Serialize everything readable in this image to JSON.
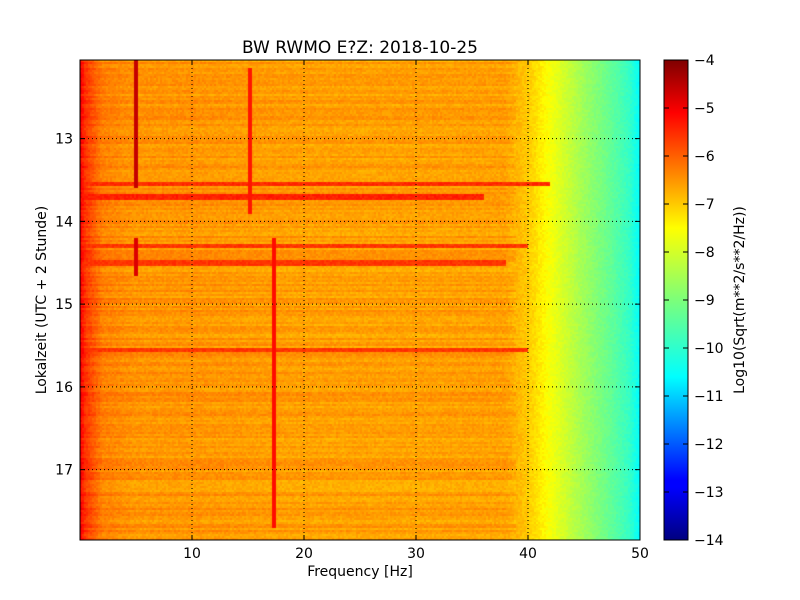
{
  "chart_data": {
    "type": "heatmap",
    "title": "BW RWMO E?Z: 2018-10-25",
    "xlabel": "Frequency [Hz]",
    "ylabel": "Lokalzeit (UTC + 2 Stunde)",
    "xlim": [
      0,
      50
    ],
    "ylim": [
      12.05,
      17.85
    ],
    "y_inverted": true,
    "x_ticks": [
      10,
      20,
      30,
      40,
      50
    ],
    "x_tick_labels": [
      "10",
      "20",
      "30",
      "40",
      "50"
    ],
    "y_ticks": [
      13,
      14,
      15,
      16,
      17
    ],
    "y_tick_labels": [
      "13",
      "14",
      "15",
      "16",
      "17"
    ],
    "grid": true,
    "colormap": "jet",
    "colorbar": {
      "label": "Log10(Sqrt(m**2/s**2/Hz))",
      "range": [
        -14,
        -4
      ],
      "ticks": [
        -4,
        -5,
        -6,
        -7,
        -8,
        -9,
        -10,
        -11,
        -12,
        -13,
        -14
      ],
      "tick_labels": [
        "−4",
        "−5",
        "−6",
        "−7",
        "−8",
        "−9",
        "−10",
        "−11",
        "−12",
        "−13",
        "−14"
      ]
    },
    "spectral_profile": {
      "frequency_hz": [
        0,
        0.5,
        2,
        5,
        10,
        20,
        30,
        38,
        40,
        42,
        43.5,
        45,
        47,
        49,
        50
      ],
      "level": [
        -5.0,
        -5.6,
        -6.3,
        -6.5,
        -6.5,
        -6.6,
        -6.6,
        -6.6,
        -7.0,
        -7.6,
        -8.1,
        -8.6,
        -9.2,
        -9.9,
        -10.6
      ]
    },
    "features": [
      {
        "kind": "vertical_line",
        "freq_hz": 5,
        "time_start": 12.05,
        "time_end": 13.6,
        "level": -4.6
      },
      {
        "kind": "vertical_line",
        "freq_hz": 5,
        "time_start": 14.2,
        "time_end": 14.65,
        "level": -4.8
      },
      {
        "kind": "vertical_line",
        "freq_hz": 15.2,
        "time_start": 12.15,
        "time_end": 13.9,
        "level": -5.3
      },
      {
        "kind": "vertical_line",
        "freq_hz": 17.3,
        "time_start": 14.2,
        "time_end": 17.7,
        "level": -5.2
      },
      {
        "kind": "horizontal_band",
        "time": 13.55,
        "freq_start": 0,
        "freq_end": 42,
        "level": -5.5
      },
      {
        "kind": "horizontal_band",
        "time": 13.7,
        "freq_start": 0,
        "freq_end": 36,
        "level": -5.4
      },
      {
        "kind": "horizontal_band",
        "time": 14.3,
        "freq_start": 0,
        "freq_end": 40,
        "level": -5.6
      },
      {
        "kind": "horizontal_band",
        "time": 14.5,
        "freq_start": 0,
        "freq_end": 38,
        "level": -5.6
      },
      {
        "kind": "horizontal_band",
        "time": 15.55,
        "freq_start": 0,
        "freq_end": 40,
        "level": -5.6
      }
    ]
  }
}
